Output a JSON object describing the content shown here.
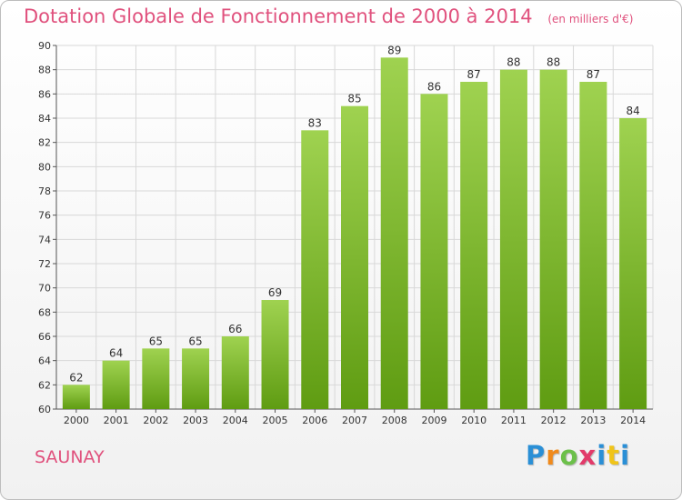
{
  "header": {
    "title": "Dotation Globale de Fonctionnement de 2000 à 2014",
    "unit_note": "(en milliers d'€)"
  },
  "footer": {
    "place": "SAUNAY",
    "logo": {
      "letters": [
        "P",
        "r",
        "o",
        "x",
        "i",
        "t",
        "i"
      ],
      "colors": [
        "#2a8fd6",
        "#f08a1c",
        "#6cc04a",
        "#e23a6a",
        "#2a8fd6",
        "#f0c419",
        "#2a8fd6"
      ]
    }
  },
  "colors": {
    "bar_top": "#9fd250",
    "bar_bottom": "#5f9c12",
    "grid": "#d8d8d8",
    "accent": "#e0517d"
  },
  "chart_data": {
    "type": "bar",
    "categories": [
      "2000",
      "2001",
      "2002",
      "2003",
      "2004",
      "2005",
      "2006",
      "2007",
      "2008",
      "2009",
      "2010",
      "2011",
      "2012",
      "2013",
      "2014"
    ],
    "values": [
      62,
      64,
      65,
      65,
      66,
      69,
      83,
      85,
      89,
      86,
      87,
      88,
      88,
      87,
      84
    ],
    "ylim": [
      60,
      90
    ],
    "yticks": [
      60,
      62,
      64,
      66,
      68,
      70,
      72,
      74,
      76,
      78,
      80,
      82,
      84,
      86,
      88,
      90
    ],
    "grid": true,
    "data_labels": true
  }
}
